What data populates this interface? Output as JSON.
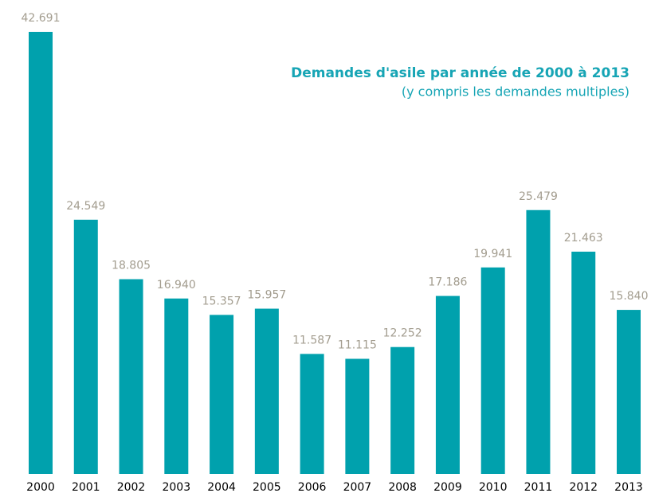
{
  "chart_data": {
    "type": "bar",
    "title": "Demandes d'asile par année de 2000 à 2013",
    "subtitle": "(y compris les demandes multiples)",
    "categories": [
      "2000",
      "2001",
      "2002",
      "2003",
      "2004",
      "2005",
      "2006",
      "2007",
      "2008",
      "2009",
      "2010",
      "2011",
      "2012",
      "2013"
    ],
    "values": [
      42691,
      24549,
      18805,
      16940,
      15357,
      15957,
      11587,
      11115,
      12252,
      17186,
      19941,
      25479,
      21463,
      15840
    ],
    "value_labels": [
      "42.691",
      "24.549",
      "18.805",
      "16.940",
      "15.357",
      "15.957",
      "11.587",
      "11.115",
      "12.252",
      "17.186",
      "19.941",
      "25.479",
      "21.463",
      "15.840"
    ],
    "color": "#00a1ad"
  }
}
